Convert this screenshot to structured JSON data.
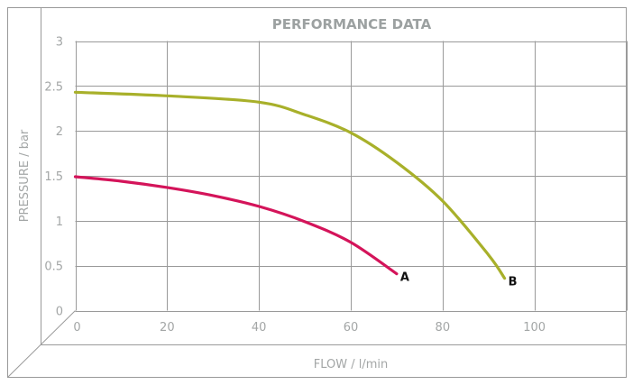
{
  "chart_data": {
    "type": "line",
    "title": "PERFORMANCE DATA",
    "xlabel": "FLOW / l/min",
    "ylabel": "PRESSURE / bar",
    "xlim": [
      0,
      120
    ],
    "ylim": [
      0,
      3
    ],
    "x_ticks": [
      "0",
      "20",
      "40",
      "60",
      "80",
      "100"
    ],
    "y_ticks": [
      "0",
      "0.5",
      "1",
      "1.5",
      "2",
      "2.5",
      "3"
    ],
    "grid": true,
    "legend": "inline end labels",
    "series": [
      {
        "name": "A",
        "color": "#d4145a",
        "x": [
          0,
          10,
          20,
          30,
          40,
          50,
          60,
          70
        ],
        "y": [
          1.49,
          1.44,
          1.37,
          1.28,
          1.16,
          0.99,
          0.76,
          0.41
        ]
      },
      {
        "name": "B",
        "color": "#a8b02a",
        "x": [
          0,
          20,
          40,
          50,
          60,
          70,
          80,
          90,
          93.5
        ],
        "y": [
          2.43,
          2.39,
          2.32,
          2.18,
          1.98,
          1.65,
          1.22,
          0.62,
          0.36
        ]
      }
    ]
  },
  "colors": {
    "grid": "#9a9a9a",
    "frame": "#9a9a9a",
    "text": "#a3a6a6",
    "title": "#9ca1a1"
  }
}
